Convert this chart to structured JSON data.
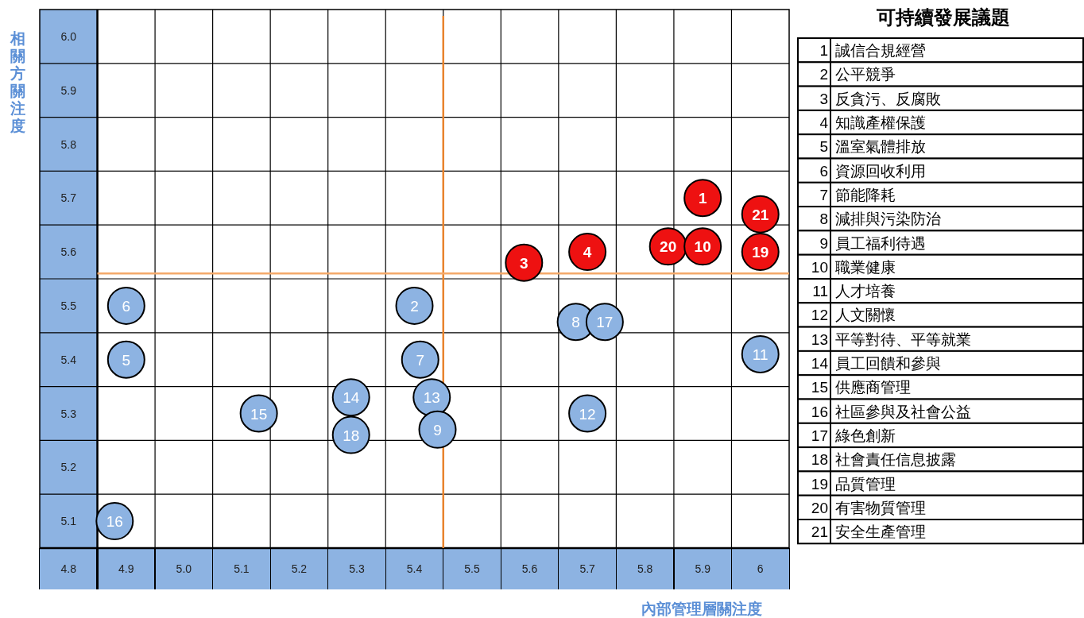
{
  "chart_data": {
    "type": "scatter",
    "title": "可持續發展議題",
    "xlabel": "內部管理層關注度",
    "ylabel": "相關方關注度",
    "xlim": [
      4.75,
      6.05
    ],
    "ylim": [
      5.05,
      6.05
    ],
    "xticks": [
      4.8,
      4.9,
      {
        "value": 5.0,
        "label": "5.0"
      },
      5.1,
      5.2,
      5.3,
      5.4,
      5.5,
      5.6,
      5.7,
      5.8,
      5.9,
      {
        "value": 6,
        "label": "6"
      }
    ],
    "yticks": [
      5.1,
      5.2,
      5.3,
      5.4,
      5.5,
      5.6,
      5.7,
      5.8,
      5.9,
      {
        "value": 6.0,
        "label": "6.0"
      }
    ],
    "grid": true,
    "marker": "circle",
    "bands": [
      {
        "axis": "x",
        "from": 4.75,
        "to": 4.85,
        "color": "#8db3e2"
      }
    ],
    "ref_lines": [
      {
        "axis": "x",
        "value": 5.45,
        "color": "#e8842e"
      },
      {
        "axis": "y",
        "value": 5.56,
        "color": "#f4a96a"
      }
    ],
    "series": [
      {
        "color": "#8db3e2",
        "x": [
          4.9,
          4.9,
          5.4,
          5.41,
          5.68,
          5.73,
          6.0,
          5.29,
          5.43,
          5.13,
          5.7,
          5.29,
          5.44,
          4.88
        ],
        "values": [
          5.5,
          5.4,
          5.5,
          5.4,
          5.47,
          5.47,
          5.41,
          5.33,
          5.33,
          5.3,
          5.3,
          5.26,
          5.27,
          5.1
        ]
      },
      {
        "color": "#ee1111",
        "x": [
          5.9,
          6.0,
          5.84,
          5.9,
          6.0,
          5.7,
          5.59
        ],
        "values": [
          5.7,
          5.67,
          5.61,
          5.61,
          5.6,
          5.6,
          5.58
        ]
      }
    ],
    "annotations": [
      {
        "text": "6",
        "x": 4.9,
        "y": 5.5
      },
      {
        "text": "5",
        "x": 4.9,
        "y": 5.4
      },
      {
        "text": "2",
        "x": 5.4,
        "y": 5.5
      },
      {
        "text": "7",
        "x": 5.41,
        "y": 5.4
      },
      {
        "text": "8",
        "x": 5.68,
        "y": 5.47
      },
      {
        "text": "17",
        "x": 5.73,
        "y": 5.47
      },
      {
        "text": "11",
        "x": 6.0,
        "y": 5.41
      },
      {
        "text": "14",
        "x": 5.29,
        "y": 5.33
      },
      {
        "text": "13",
        "x": 5.43,
        "y": 5.33
      },
      {
        "text": "15",
        "x": 5.13,
        "y": 5.3
      },
      {
        "text": "12",
        "x": 5.7,
        "y": 5.3
      },
      {
        "text": "18",
        "x": 5.29,
        "y": 5.26
      },
      {
        "text": "9",
        "x": 5.44,
        "y": 5.27
      },
      {
        "text": "16",
        "x": 4.88,
        "y": 5.1
      },
      {
        "text": "1",
        "x": 5.9,
        "y": 5.7
      },
      {
        "text": "21",
        "x": 6.0,
        "y": 5.67
      },
      {
        "text": "20",
        "x": 5.84,
        "y": 5.61
      },
      {
        "text": "10",
        "x": 5.9,
        "y": 5.61
      },
      {
        "text": "19",
        "x": 6.0,
        "y": 5.6
      },
      {
        "text": "4",
        "x": 5.7,
        "y": 5.6
      },
      {
        "text": "3",
        "x": 5.59,
        "y": 5.58
      },
      "1 誠信合規經營",
      "2 公平競爭",
      "3 反貪污、反腐敗",
      "4 知識產權保護",
      "5 溫室氣體排放",
      "6 資源回收利用",
      "7 節能降耗",
      "8 減排與污染防治",
      "9 員工福利待遇",
      "10 職業健康",
      "11 人才培養",
      "12 人文關懷",
      "13 平等對待、平等就業",
      "14 員工回饋和參與",
      "15 供應商管理",
      "16 社區參與及社會公益",
      "17 綠色創新",
      "18 社會責任信息披露",
      "19 品質管理",
      "20 有害物質管理",
      "21 安全生產管理"
    ]
  }
}
